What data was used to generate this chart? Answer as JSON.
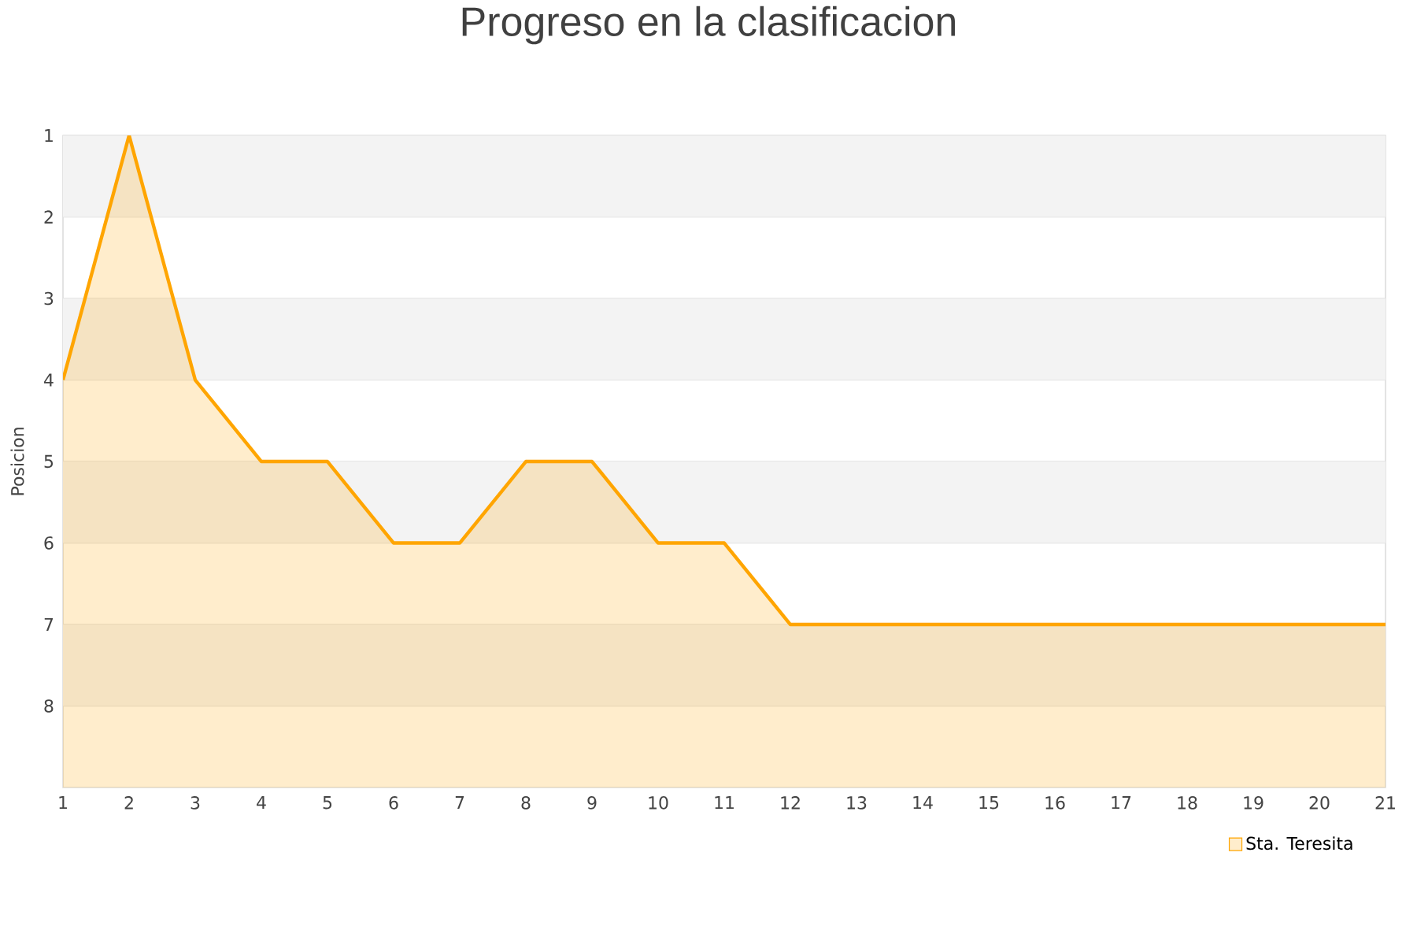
{
  "chart_data": {
    "type": "area",
    "title": "Progreso en la clasificacion",
    "ylabel": "Posicion",
    "x": [
      1,
      2,
      3,
      4,
      5,
      6,
      7,
      8,
      9,
      10,
      11,
      12,
      13,
      14,
      15,
      16,
      17,
      18,
      19,
      20,
      21
    ],
    "series": [
      {
        "name": "Sta. Teresita",
        "color": "#ffa500",
        "values": [
          4,
          1,
          4,
          5,
          5,
          6,
          6,
          5,
          5,
          6,
          6,
          7,
          7,
          7,
          7,
          7,
          7,
          7,
          7,
          7,
          7
        ]
      }
    ],
    "xlim": [
      1,
      21
    ],
    "ylim": [
      9,
      1
    ],
    "xticks": [
      1,
      2,
      3,
      4,
      5,
      6,
      7,
      8,
      9,
      10,
      11,
      12,
      13,
      14,
      15,
      16,
      17,
      18,
      19,
      20,
      21
    ],
    "yticks": [
      1,
      2,
      3,
      4,
      5,
      6,
      7,
      8
    ],
    "grid": "y",
    "legend": "bottom right",
    "bands": [
      {
        "axis": "y",
        "from": 1,
        "to": 2,
        "color": "#f3f3f3"
      },
      {
        "axis": "y",
        "from": 3,
        "to": 4,
        "color": "#f3f3f3"
      },
      {
        "axis": "y",
        "from": 5,
        "to": 6,
        "color": "#f3f3f3"
      },
      {
        "axis": "y",
        "from": 7,
        "to": 8,
        "color": "#f3f3f3"
      }
    ]
  }
}
